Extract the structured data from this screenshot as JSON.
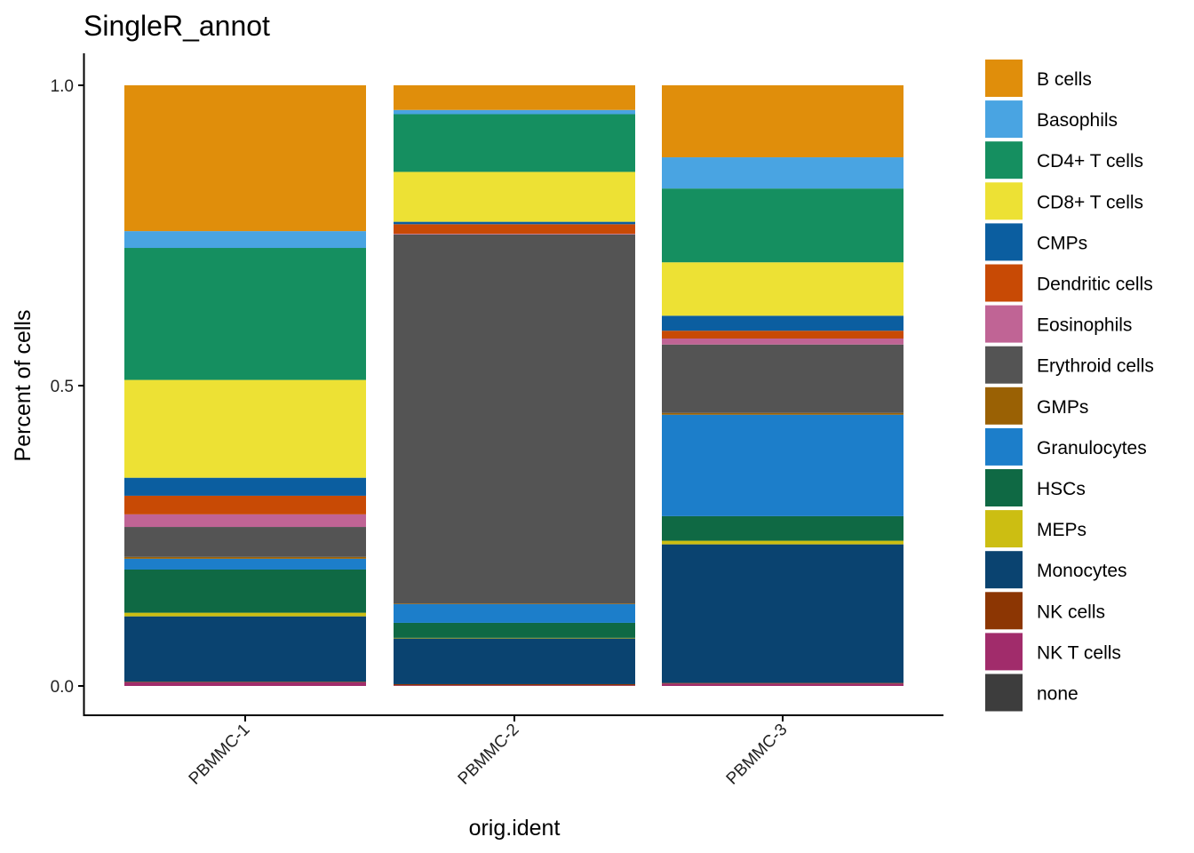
{
  "chart_data": {
    "type": "bar",
    "stacked": true,
    "title": "SingleR_annot",
    "xlabel": "orig.ident",
    "ylabel": "Percent of cells",
    "ylim": [
      0,
      1
    ],
    "yticks": [
      0.0,
      0.5,
      1.0
    ],
    "ytick_labels": [
      "0.0",
      "0.5",
      "1.0"
    ],
    "grid": false,
    "legend_position": "right",
    "categories": [
      "PBMMC-1",
      "PBMMC-2",
      "PBMMC-3"
    ],
    "series": [
      {
        "name": "B cells",
        "color": "#E08E0B",
        "values": [
          0.243,
          0.041,
          0.12
        ]
      },
      {
        "name": "Basophils",
        "color": "#49A4E2",
        "values": [
          0.028,
          0.007,
          0.052
        ]
      },
      {
        "name": "CD4+ T cells",
        "color": "#158F60",
        "values": [
          0.22,
          0.096,
          0.123
        ]
      },
      {
        "name": "CD8+ T cells",
        "color": "#EDE134",
        "values": [
          0.163,
          0.083,
          0.089
        ]
      },
      {
        "name": "CMPs",
        "color": "#0B5EA0",
        "values": [
          0.03,
          0.004,
          0.025
        ]
      },
      {
        "name": "Dendritic cells",
        "color": "#C84A05",
        "values": [
          0.031,
          0.016,
          0.013
        ]
      },
      {
        "name": "Eosinophils",
        "color": "#C06495",
        "values": [
          0.021,
          0.001,
          0.01
        ]
      },
      {
        "name": "Erythroid cells",
        "color": "#545454",
        "values": [
          0.05,
          0.614,
          0.114
        ]
      },
      {
        "name": "GMPs",
        "color": "#9A6104",
        "values": [
          0.003,
          0.001,
          0.003
        ]
      },
      {
        "name": "Granulocytes",
        "color": "#1C7ECA",
        "values": [
          0.018,
          0.031,
          0.169
        ]
      },
      {
        "name": "HSCs",
        "color": "#0F6944",
        "values": [
          0.072,
          0.025,
          0.041
        ]
      },
      {
        "name": "MEPs",
        "color": "#CCBE12",
        "values": [
          0.006,
          0.001,
          0.006
        ]
      },
      {
        "name": "Monocytes",
        "color": "#0A4370",
        "values": [
          0.109,
          0.076,
          0.231
        ]
      },
      {
        "name": "NK cells",
        "color": "#8C3603",
        "values": [
          0.001,
          0.002,
          0.001
        ]
      },
      {
        "name": "NK T cells",
        "color": "#A12C6B",
        "values": [
          0.006,
          0.001,
          0.004
        ]
      },
      {
        "name": "none",
        "color": "#3D3D3D",
        "values": [
          0.0,
          0.0,
          0.0
        ]
      }
    ]
  }
}
